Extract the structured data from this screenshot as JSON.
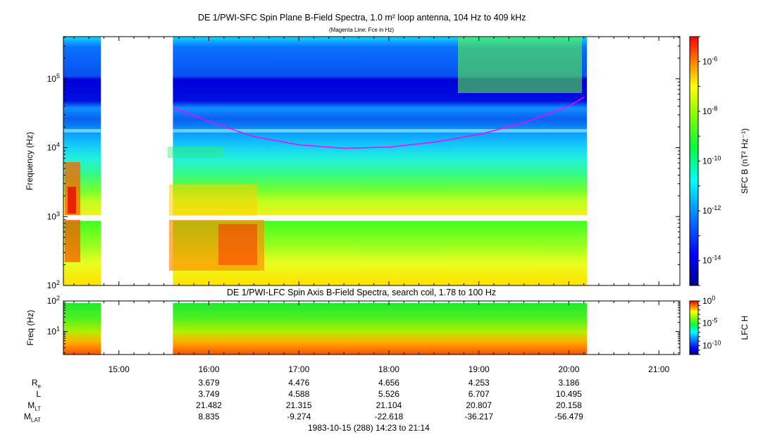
{
  "chart_data": [
    {
      "type": "heatmap",
      "title": "DE 1/PWI-SFC  Spin Plane B-Field Spectra, 1.0 m² loop antenna, 104 Hz to 409 kHz",
      "subtitle": "(Magenta Line: Fce in Hz)",
      "ylabel": "Frequency (Hz)",
      "yscale": "log",
      "ylim": [
        100,
        409000
      ],
      "yticks": [
        "10^2",
        "10^3",
        "10^4",
        "10^5"
      ],
      "colorbar": {
        "label": "SFC B (nT² Hz⁻¹)",
        "scale": "log",
        "ticks": [
          "10^-6",
          "10^-8",
          "10^-10",
          "10^-12",
          "10^-14"
        ]
      },
      "data_gaps": [
        [
          "14:48",
          "15:36"
        ]
      ],
      "data_end": "20:12",
      "fce_line": {
        "name": "Fce",
        "color": "#ff00ff",
        "points": [
          [
            "15:36",
            38000
          ],
          [
            "16:00",
            24000
          ],
          [
            "16:30",
            14500
          ],
          [
            "17:00",
            11000
          ],
          [
            "17:30",
            9800
          ],
          [
            "18:00",
            10200
          ],
          [
            "18:30",
            12000
          ],
          [
            "19:00",
            15500
          ],
          [
            "19:30",
            23000
          ],
          [
            "20:00",
            40000
          ],
          [
            "20:10",
            54000
          ]
        ]
      }
    },
    {
      "type": "heatmap",
      "title": "DE 1/PWI-LFC  Spin Axis B-Field Spectra, search coil, 1.78 to 100 Hz",
      "ylabel": "Freq (Hz)",
      "yscale": "log",
      "ylim": [
        1.78,
        100
      ],
      "yticks": [
        "10^1",
        "10^2"
      ],
      "colorbar": {
        "label": "LFC H",
        "scale": "log",
        "ticks": [
          "10^0",
          "10^-5",
          "10^-10"
        ]
      }
    }
  ],
  "time_axis": {
    "ticks": [
      "15:00",
      "16:00",
      "17:00",
      "18:00",
      "19:00",
      "20:00",
      "21:00"
    ]
  },
  "ephemeris": {
    "labels": [
      {
        "main": "R",
        "sub": "e"
      },
      {
        "main": "L",
        "sub": ""
      },
      {
        "main": "M",
        "sub": "LT"
      },
      {
        "main": "M",
        "sub": "LAT"
      }
    ],
    "columns": [
      {
        "time": "16:00",
        "Re": "3.679",
        "L": "3.749",
        "MLT": "21.482",
        "MLAT": "8.835"
      },
      {
        "time": "17:00",
        "Re": "4.476",
        "L": "4.588",
        "MLT": "21.315",
        "MLAT": "-9.274"
      },
      {
        "time": "18:00",
        "Re": "4.656",
        "L": "5.526",
        "MLT": "21.104",
        "MLAT": "-22.618"
      },
      {
        "time": "19:00",
        "Re": "4.253",
        "L": "6.707",
        "MLT": "20.807",
        "MLAT": "-36.217"
      },
      {
        "time": "20:00",
        "Re": "3.186",
        "L": "10.495",
        "MLT": "20.158",
        "MLAT": "-56.479"
      }
    ]
  },
  "footer": "1983-10-15 (288) 14:23 to 21:14"
}
